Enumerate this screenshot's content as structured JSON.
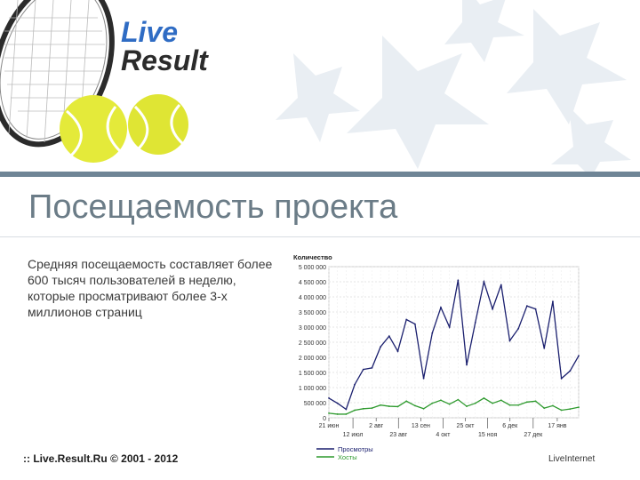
{
  "slide": {
    "title": "Посещаемость проекта",
    "description": "Средняя посещаемость составляет более 600 тысяч пользователей в неделю, которые просматривают более 3-х миллионов страниц",
    "footer": ":: Live.Result.Ru © 2001 - 2012",
    "liveinternet_label": "LiveInternet"
  },
  "logo": {
    "line1": "Live",
    "line2": "Result"
  },
  "colors": {
    "divider": "#6f8596",
    "title": "#6b7c87",
    "logo_live": "#2f6cc4",
    "logo_result": "#2b2b2b",
    "series_views": "#1a1f6e",
    "series_hosts": "#2e9a2e"
  },
  "chart_data": {
    "type": "line",
    "ylabel": "Количество",
    "ylim": [
      0,
      5000000
    ],
    "yticks": [
      "0",
      "500 000",
      "1 000 000",
      "1 500 000",
      "2 000 000",
      "2 500 000",
      "3 000 000",
      "3 500 000",
      "4 000 000",
      "4 500 000",
      "5 000 000"
    ],
    "xlim": [
      0,
      28
    ],
    "xticks_upper": [
      {
        "x": 0,
        "label": "21 июн"
      },
      {
        "x": 5.3,
        "label": "2 авг"
      },
      {
        "x": 10.3,
        "label": "13 сен"
      },
      {
        "x": 15.3,
        "label": "25 окт"
      },
      {
        "x": 20.3,
        "label": "6 дек"
      },
      {
        "x": 25.6,
        "label": "17 янв"
      }
    ],
    "xticks_lower": [
      {
        "x": 2.7,
        "label": "12 июл"
      },
      {
        "x": 7.8,
        "label": "23 авг"
      },
      {
        "x": 12.8,
        "label": "4 окт"
      },
      {
        "x": 17.8,
        "label": "15 ноя"
      },
      {
        "x": 22.9,
        "label": "27 дек"
      }
    ],
    "grid": true,
    "legend_position": "bottom-left",
    "series": [
      {
        "name": "Просмотры",
        "color": "#1a1f6e",
        "values": [
          650000,
          480000,
          280000,
          1100000,
          1600000,
          1650000,
          2350000,
          2700000,
          2200000,
          3250000,
          3100000,
          1300000,
          2800000,
          3650000,
          3000000,
          4550000,
          1750000,
          3150000,
          4500000,
          3600000,
          4400000,
          2550000,
          2950000,
          3700000,
          3600000,
          2300000,
          3850000,
          1300000,
          1550000,
          2050000
        ]
      },
      {
        "name": "Хосты",
        "color": "#2e9a2e",
        "values": [
          150000,
          120000,
          120000,
          250000,
          300000,
          320000,
          420000,
          380000,
          370000,
          550000,
          400000,
          300000,
          480000,
          580000,
          450000,
          600000,
          380000,
          480000,
          650000,
          480000,
          580000,
          420000,
          420000,
          520000,
          550000,
          320000,
          400000,
          250000,
          290000,
          350000
        ]
      }
    ]
  }
}
